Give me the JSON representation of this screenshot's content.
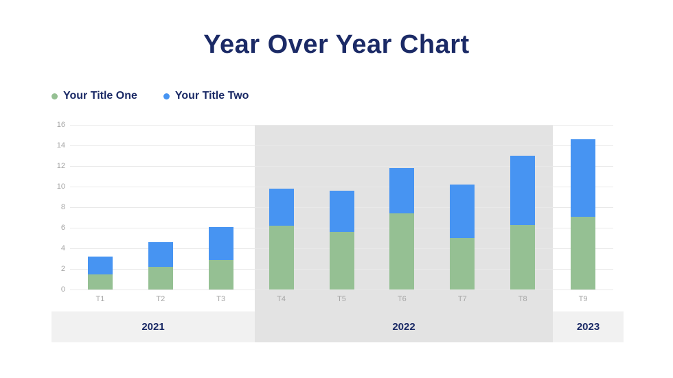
{
  "title": "Year Over Year Chart",
  "legend": [
    {
      "label": "Your Title One",
      "color": "#95c093"
    },
    {
      "label": "Your Title Two",
      "color": "#4794f2"
    }
  ],
  "chart_data": {
    "type": "bar",
    "stacked": true,
    "title": "Year Over Year Chart",
    "categories": [
      "T1",
      "T2",
      "T3",
      "T4",
      "T5",
      "T6",
      "T7",
      "T8",
      "T9"
    ],
    "series": [
      {
        "name": "Your Title One",
        "color": "#95c093",
        "values": [
          1.5,
          2.2,
          2.9,
          6.2,
          5.6,
          7.4,
          5.0,
          6.3,
          7.1
        ]
      },
      {
        "name": "Your Title Two",
        "color": "#4794f2",
        "values": [
          1.7,
          2.4,
          3.2,
          3.6,
          4.0,
          4.4,
          5.2,
          6.7,
          7.5
        ]
      }
    ],
    "stack_totals": [
      3.2,
      4.6,
      6.1,
      9.8,
      9.6,
      11.8,
      10.2,
      13.0,
      14.6
    ],
    "ylim": [
      0,
      16
    ],
    "ytick_step": 2,
    "ytick_labels": [
      "0",
      "2",
      "4",
      "6",
      "8",
      "10",
      "12",
      "14",
      "16"
    ],
    "grid": "horizontal",
    "legend_position": "top-left",
    "groups": [
      {
        "label": "2021",
        "categories": [
          "T1",
          "T2",
          "T3"
        ],
        "highlight": false
      },
      {
        "label": "2022",
        "categories": [
          "T4",
          "T5",
          "T6",
          "T7",
          "T8"
        ],
        "highlight": true
      },
      {
        "label": "2023",
        "categories": [
          "T9"
        ],
        "highlight": false
      }
    ]
  },
  "colors": {
    "accent_navy": "#1b2a66",
    "series_green": "#95c093",
    "series_blue": "#4794f2",
    "highlight_gray": "#e3e3e3",
    "band_light_gray": "#f1f1f1",
    "gridline": "#e9e9e9",
    "tick_text": "#a5a5a5"
  }
}
